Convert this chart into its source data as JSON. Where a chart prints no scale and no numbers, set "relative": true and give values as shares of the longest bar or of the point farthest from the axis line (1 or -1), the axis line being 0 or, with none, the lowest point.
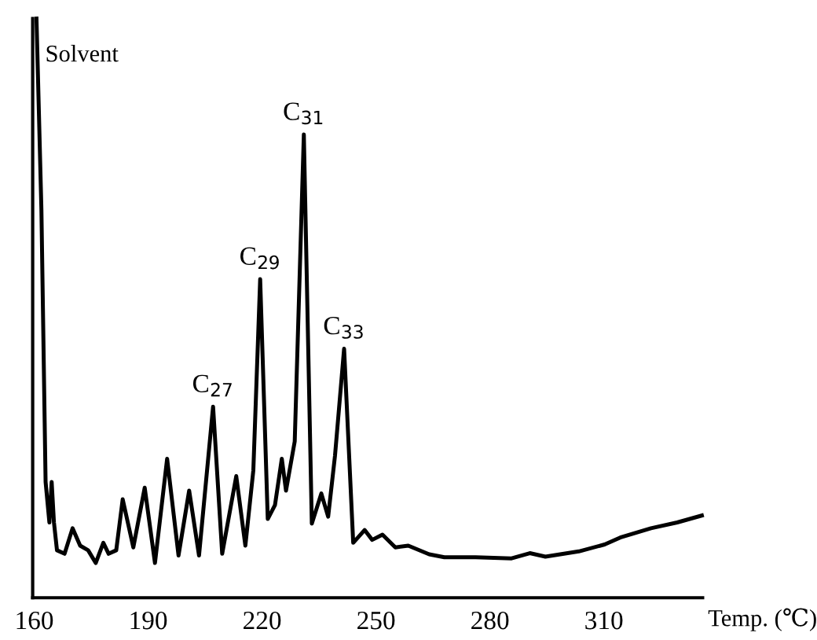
{
  "chart_data": {
    "type": "line",
    "relative": true,
    "xlabel": "Temp. (℃)",
    "color": "#000000",
    "x": [
      160.6,
      161.9,
      163.0,
      164.0,
      164.6,
      165.2,
      166.0,
      168.0,
      170.1,
      172.1,
      174.2,
      176.2,
      178.2,
      179.6,
      181.6,
      183.3,
      186.1,
      189.1,
      191.8,
      195.0,
      198.0,
      200.8,
      203.4,
      207.1,
      209.5,
      213.2,
      215.6,
      217.7,
      219.5,
      221.5,
      223.4,
      225.2,
      226.3,
      228.6,
      231.0,
      233.1,
      235.6,
      237.4,
      239.2,
      241.6,
      244.0,
      247.0,
      249.0,
      251.7,
      255.1,
      258.5,
      264.0,
      268.0,
      276.2,
      285.7,
      290.5,
      294.6,
      303.4,
      310.2,
      314.3,
      322.4,
      329.3,
      335.8
    ],
    "values": [
      1.0,
      0.67,
      0.2,
      0.13,
      0.2,
      0.13,
      0.082,
      0.076,
      0.12,
      0.09,
      0.082,
      0.06,
      0.095,
      0.076,
      0.082,
      0.17,
      0.087,
      0.19,
      0.06,
      0.24,
      0.073,
      0.185,
      0.073,
      0.33,
      0.076,
      0.21,
      0.09,
      0.22,
      0.55,
      0.136,
      0.16,
      0.24,
      0.185,
      0.27,
      0.8,
      0.128,
      0.18,
      0.14,
      0.245,
      0.43,
      0.095,
      0.117,
      0.1,
      0.109,
      0.087,
      0.09,
      0.075,
      0.07,
      0.07,
      0.068,
      0.077,
      0.071,
      0.08,
      0.092,
      0.104,
      0.12,
      0.13,
      0.142
    ],
    "xlim": [
      159.6,
      336
    ],
    "xticks": [
      160,
      190,
      220,
      250,
      280,
      310
    ],
    "grid": false,
    "legend": false,
    "annotations": [
      {
        "text": "Solvent",
        "x": 160.6,
        "y": 1.0
      },
      {
        "text": "C$_{27}$",
        "x": 207.1,
        "y": 0.33
      },
      {
        "text": "C$_{29}$",
        "x": 219.5,
        "y": 0.55
      },
      {
        "text": "C$_{31}$",
        "x": 231.0,
        "y": 0.8
      },
      {
        "text": "C$_{33}$",
        "x": 241.6,
        "y": 0.43
      }
    ]
  }
}
